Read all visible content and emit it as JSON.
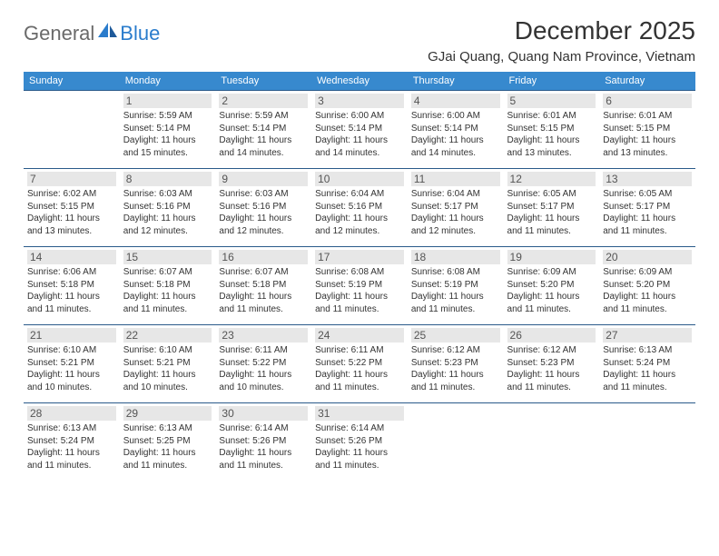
{
  "logo": {
    "general": "General",
    "blue": "Blue"
  },
  "title": "December 2025",
  "location": "GJai Quang, Quang Nam Province, Vietnam",
  "colors": {
    "header_bg": "#3789ce",
    "header_fg": "#ffffff",
    "rule": "#2a5a8a",
    "daynum_bg": "#e7e7e7",
    "daynum_fg": "#555555",
    "text": "#333333",
    "logo_grey": "#6a6a6a",
    "logo_blue": "#2a7ccc"
  },
  "weekdays": [
    "Sunday",
    "Monday",
    "Tuesday",
    "Wednesday",
    "Thursday",
    "Friday",
    "Saturday"
  ],
  "weeks": [
    [
      null,
      {
        "n": "1",
        "sr": "5:59 AM",
        "ss": "5:14 PM",
        "dl": "11 hours and 15 minutes."
      },
      {
        "n": "2",
        "sr": "5:59 AM",
        "ss": "5:14 PM",
        "dl": "11 hours and 14 minutes."
      },
      {
        "n": "3",
        "sr": "6:00 AM",
        "ss": "5:14 PM",
        "dl": "11 hours and 14 minutes."
      },
      {
        "n": "4",
        "sr": "6:00 AM",
        "ss": "5:14 PM",
        "dl": "11 hours and 14 minutes."
      },
      {
        "n": "5",
        "sr": "6:01 AM",
        "ss": "5:15 PM",
        "dl": "11 hours and 13 minutes."
      },
      {
        "n": "6",
        "sr": "6:01 AM",
        "ss": "5:15 PM",
        "dl": "11 hours and 13 minutes."
      }
    ],
    [
      {
        "n": "7",
        "sr": "6:02 AM",
        "ss": "5:15 PM",
        "dl": "11 hours and 13 minutes."
      },
      {
        "n": "8",
        "sr": "6:03 AM",
        "ss": "5:16 PM",
        "dl": "11 hours and 12 minutes."
      },
      {
        "n": "9",
        "sr": "6:03 AM",
        "ss": "5:16 PM",
        "dl": "11 hours and 12 minutes."
      },
      {
        "n": "10",
        "sr": "6:04 AM",
        "ss": "5:16 PM",
        "dl": "11 hours and 12 minutes."
      },
      {
        "n": "11",
        "sr": "6:04 AM",
        "ss": "5:17 PM",
        "dl": "11 hours and 12 minutes."
      },
      {
        "n": "12",
        "sr": "6:05 AM",
        "ss": "5:17 PM",
        "dl": "11 hours and 11 minutes."
      },
      {
        "n": "13",
        "sr": "6:05 AM",
        "ss": "5:17 PM",
        "dl": "11 hours and 11 minutes."
      }
    ],
    [
      {
        "n": "14",
        "sr": "6:06 AM",
        "ss": "5:18 PM",
        "dl": "11 hours and 11 minutes."
      },
      {
        "n": "15",
        "sr": "6:07 AM",
        "ss": "5:18 PM",
        "dl": "11 hours and 11 minutes."
      },
      {
        "n": "16",
        "sr": "6:07 AM",
        "ss": "5:18 PM",
        "dl": "11 hours and 11 minutes."
      },
      {
        "n": "17",
        "sr": "6:08 AM",
        "ss": "5:19 PM",
        "dl": "11 hours and 11 minutes."
      },
      {
        "n": "18",
        "sr": "6:08 AM",
        "ss": "5:19 PM",
        "dl": "11 hours and 11 minutes."
      },
      {
        "n": "19",
        "sr": "6:09 AM",
        "ss": "5:20 PM",
        "dl": "11 hours and 11 minutes."
      },
      {
        "n": "20",
        "sr": "6:09 AM",
        "ss": "5:20 PM",
        "dl": "11 hours and 11 minutes."
      }
    ],
    [
      {
        "n": "21",
        "sr": "6:10 AM",
        "ss": "5:21 PM",
        "dl": "11 hours and 10 minutes."
      },
      {
        "n": "22",
        "sr": "6:10 AM",
        "ss": "5:21 PM",
        "dl": "11 hours and 10 minutes."
      },
      {
        "n": "23",
        "sr": "6:11 AM",
        "ss": "5:22 PM",
        "dl": "11 hours and 10 minutes."
      },
      {
        "n": "24",
        "sr": "6:11 AM",
        "ss": "5:22 PM",
        "dl": "11 hours and 11 minutes."
      },
      {
        "n": "25",
        "sr": "6:12 AM",
        "ss": "5:23 PM",
        "dl": "11 hours and 11 minutes."
      },
      {
        "n": "26",
        "sr": "6:12 AM",
        "ss": "5:23 PM",
        "dl": "11 hours and 11 minutes."
      },
      {
        "n": "27",
        "sr": "6:13 AM",
        "ss": "5:24 PM",
        "dl": "11 hours and 11 minutes."
      }
    ],
    [
      {
        "n": "28",
        "sr": "6:13 AM",
        "ss": "5:24 PM",
        "dl": "11 hours and 11 minutes."
      },
      {
        "n": "29",
        "sr": "6:13 AM",
        "ss": "5:25 PM",
        "dl": "11 hours and 11 minutes."
      },
      {
        "n": "30",
        "sr": "6:14 AM",
        "ss": "5:26 PM",
        "dl": "11 hours and 11 minutes."
      },
      {
        "n": "31",
        "sr": "6:14 AM",
        "ss": "5:26 PM",
        "dl": "11 hours and 11 minutes."
      },
      null,
      null,
      null
    ]
  ],
  "labels": {
    "sunrise": "Sunrise:",
    "sunset": "Sunset:",
    "daylight": "Daylight:"
  }
}
